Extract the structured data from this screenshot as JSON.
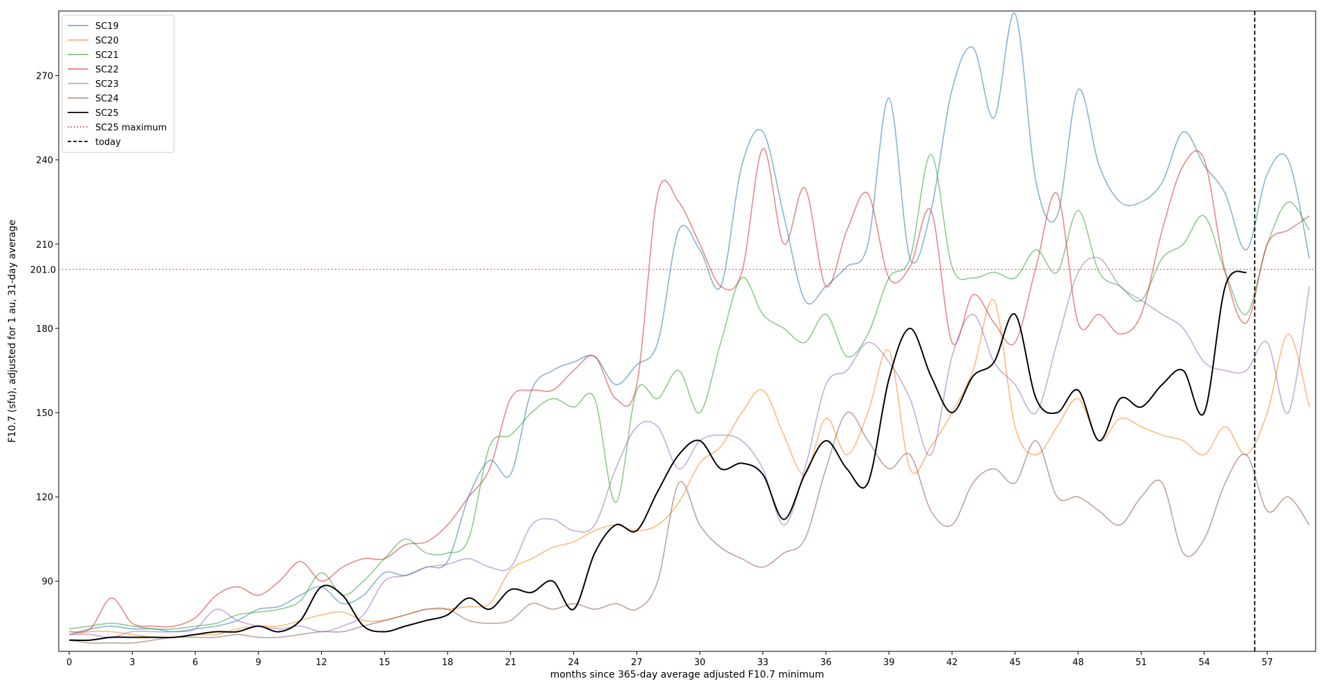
{
  "chart_data": {
    "type": "line",
    "xlabel": "months since 365-day average adjusted F10.7 minimum",
    "ylabel": "F10.7 (sfu), adjusted for 1 au, 31-day average",
    "xlim": [
      -0.5,
      59.3
    ],
    "ylim": [
      65,
      293
    ],
    "xticks": [
      0,
      3,
      6,
      9,
      12,
      15,
      18,
      21,
      24,
      27,
      30,
      33,
      36,
      39,
      42,
      45,
      48,
      51,
      54,
      57
    ],
    "yticks": [
      90,
      120,
      150,
      180,
      210,
      240,
      270
    ],
    "grid": false,
    "legend_position": "top-left",
    "series": [
      {
        "name": "SC19",
        "color": "#1f77b4",
        "x": [
          0,
          1,
          2,
          3,
          4,
          5,
          6,
          7,
          8,
          9,
          10,
          11,
          12,
          13,
          14,
          15,
          16,
          17,
          18,
          19,
          20,
          21,
          22,
          23,
          24,
          25,
          26,
          27,
          28,
          29,
          30,
          31,
          32,
          33,
          34,
          35,
          36,
          37,
          38,
          39,
          40,
          41,
          42,
          43,
          44,
          45,
          46,
          47,
          48,
          49,
          50,
          51,
          52,
          53,
          54,
          55,
          56,
          57,
          58,
          59
        ],
        "y": [
          71,
          73,
          74,
          73,
          73,
          72,
          73,
          74,
          76,
          80,
          81,
          85,
          88,
          82,
          85,
          93,
          92,
          95,
          97,
          120,
          133,
          128,
          158,
          165,
          168,
          170,
          160,
          167,
          175,
          215,
          208,
          195,
          238,
          250,
          220,
          190,
          195,
          202,
          210,
          262,
          205,
          222,
          265,
          280,
          255,
          292,
          232,
          220,
          265,
          238,
          225,
          225,
          232,
          250,
          238,
          228,
          208,
          235,
          240,
          205
        ]
      },
      {
        "name": "SC20",
        "color": "#ff7f0e",
        "x": [
          0,
          1,
          2,
          3,
          4,
          5,
          6,
          7,
          8,
          9,
          10,
          11,
          12,
          13,
          14,
          15,
          16,
          17,
          18,
          19,
          20,
          21,
          22,
          23,
          24,
          25,
          26,
          27,
          28,
          29,
          30,
          31,
          32,
          33,
          34,
          35,
          36,
          37,
          38,
          39,
          40,
          41,
          42,
          43,
          44,
          45,
          46,
          47,
          48,
          49,
          50,
          51,
          52,
          53,
          54,
          55,
          56,
          57,
          58,
          59
        ],
        "y": [
          71,
          72,
          72,
          71,
          70,
          70,
          71,
          71,
          73,
          74,
          74,
          76,
          78,
          79,
          76,
          76,
          78,
          80,
          80,
          81,
          82,
          94,
          98,
          102,
          104,
          108,
          110,
          108,
          110,
          118,
          132,
          138,
          150,
          158,
          142,
          128,
          148,
          135,
          150,
          172,
          130,
          138,
          150,
          165,
          190,
          145,
          135,
          145,
          155,
          140,
          148,
          145,
          142,
          140,
          135,
          145,
          135,
          150,
          178,
          152
        ]
      },
      {
        "name": "SC21",
        "color": "#2ca02c",
        "x": [
          0,
          1,
          2,
          3,
          4,
          5,
          6,
          7,
          8,
          9,
          10,
          11,
          12,
          13,
          14,
          15,
          16,
          17,
          18,
          19,
          20,
          21,
          22,
          23,
          24,
          25,
          26,
          27,
          28,
          29,
          30,
          31,
          32,
          33,
          34,
          35,
          36,
          37,
          38,
          39,
          40,
          41,
          42,
          43,
          44,
          45,
          46,
          47,
          48,
          49,
          50,
          51,
          52,
          53,
          54,
          55,
          56,
          57,
          58,
          59
        ],
        "y": [
          73,
          74,
          75,
          74,
          73,
          73,
          74,
          75,
          78,
          79,
          80,
          83,
          93,
          85,
          90,
          98,
          105,
          100,
          100,
          105,
          138,
          142,
          150,
          155,
          152,
          155,
          118,
          158,
          155,
          165,
          150,
          175,
          198,
          185,
          180,
          175,
          185,
          170,
          178,
          198,
          205,
          242,
          202,
          198,
          200,
          198,
          208,
          200,
          222,
          200,
          195,
          190,
          205,
          210,
          220,
          200,
          185,
          210,
          225,
          215
        ]
      },
      {
        "name": "SC22",
        "color": "#d62728",
        "x": [
          0,
          1,
          2,
          3,
          4,
          5,
          6,
          7,
          8,
          9,
          10,
          11,
          12,
          13,
          14,
          15,
          16,
          17,
          18,
          19,
          20,
          21,
          22,
          23,
          24,
          25,
          26,
          27,
          28,
          29,
          30,
          31,
          32,
          33,
          34,
          35,
          36,
          37,
          38,
          39,
          40,
          41,
          42,
          43,
          44,
          45,
          46,
          47,
          48,
          49,
          50,
          51,
          52,
          53,
          54,
          55,
          56,
          57,
          58,
          59
        ],
        "y": [
          72,
          73,
          84,
          75,
          74,
          74,
          77,
          85,
          88,
          85,
          90,
          97,
          90,
          95,
          98,
          98,
          103,
          104,
          110,
          120,
          130,
          155,
          158,
          158,
          165,
          170,
          155,
          160,
          228,
          225,
          210,
          195,
          200,
          244,
          210,
          230,
          195,
          215,
          228,
          198,
          202,
          222,
          175,
          192,
          182,
          175,
          202,
          228,
          182,
          185,
          178,
          185,
          215,
          238,
          240,
          200,
          182,
          210,
          215,
          220
        ]
      },
      {
        "name": "SC23",
        "color": "#9467bd",
        "x": [
          0,
          1,
          2,
          3,
          4,
          5,
          6,
          7,
          8,
          9,
          10,
          11,
          12,
          13,
          14,
          15,
          16,
          17,
          18,
          19,
          20,
          21,
          22,
          23,
          24,
          25,
          26,
          27,
          28,
          29,
          30,
          31,
          32,
          33,
          34,
          35,
          36,
          37,
          38,
          39,
          40,
          41,
          42,
          43,
          44,
          45,
          46,
          47,
          48,
          49,
          50,
          51,
          52,
          53,
          54,
          55,
          56,
          57,
          58,
          59
        ],
        "y": [
          71,
          71,
          70,
          72,
          72,
          72,
          73,
          80,
          76,
          74,
          73,
          74,
          72,
          74,
          78,
          90,
          92,
          95,
          96,
          98,
          95,
          95,
          110,
          112,
          108,
          110,
          130,
          145,
          145,
          130,
          140,
          142,
          140,
          130,
          110,
          130,
          160,
          165,
          175,
          168,
          155,
          135,
          170,
          185,
          168,
          160,
          150,
          175,
          200,
          205,
          195,
          190,
          185,
          180,
          168,
          165,
          165,
          175,
          150,
          195
        ]
      },
      {
        "name": "SC24",
        "color": "#8c564b",
        "x": [
          0,
          1,
          2,
          3,
          4,
          5,
          6,
          7,
          8,
          9,
          10,
          11,
          12,
          13,
          14,
          15,
          16,
          17,
          18,
          19,
          20,
          21,
          22,
          23,
          24,
          25,
          26,
          27,
          28,
          29,
          30,
          31,
          32,
          33,
          34,
          35,
          36,
          37,
          38,
          39,
          40,
          41,
          42,
          43,
          44,
          45,
          46,
          47,
          48,
          49,
          50,
          51,
          52,
          53,
          54,
          55,
          56,
          57,
          58,
          59
        ],
        "y": [
          69,
          68,
          68,
          68,
          69,
          70,
          70,
          70,
          71,
          70,
          70,
          71,
          72,
          72,
          74,
          76,
          78,
          80,
          80,
          76,
          75,
          76,
          82,
          80,
          82,
          80,
          82,
          80,
          90,
          125,
          110,
          102,
          98,
          95,
          100,
          105,
          130,
          150,
          140,
          130,
          135,
          115,
          110,
          125,
          130,
          125,
          140,
          120,
          120,
          115,
          110,
          120,
          125,
          100,
          105,
          125,
          135,
          115,
          120,
          110
        ]
      },
      {
        "name": "SC25",
        "color": "#000000",
        "x": [
          0,
          1,
          2,
          3,
          4,
          5,
          6,
          7,
          8,
          9,
          10,
          11,
          12,
          13,
          14,
          15,
          16,
          17,
          18,
          19,
          20,
          21,
          22,
          23,
          24,
          25,
          26,
          27,
          28,
          29,
          30,
          31,
          32,
          33,
          34,
          35,
          36,
          37,
          38,
          39,
          40,
          41,
          42,
          43,
          44,
          45,
          46,
          47,
          48,
          49,
          50,
          51,
          52,
          53,
          54,
          55,
          56
        ],
        "y": [
          69,
          69,
          70,
          70,
          70,
          70,
          71,
          72,
          72,
          74,
          72,
          76,
          88,
          85,
          74,
          72,
          74,
          76,
          78,
          84,
          80,
          87,
          86,
          90,
          80,
          100,
          110,
          108,
          122,
          135,
          140,
          130,
          132,
          128,
          112,
          128,
          140,
          130,
          125,
          162,
          180,
          163,
          150,
          163,
          168,
          185,
          155,
          150,
          158,
          140,
          155,
          152,
          160,
          165,
          150,
          195,
          200
        ]
      },
      {
        "name": "SC25 maximum",
        "color": "#ff0000",
        "style": "dotted",
        "y_const": 201.0
      },
      {
        "name": "today",
        "color": "#000000",
        "style": "dashed",
        "x_const": 56.4
      }
    ],
    "annotations": [
      {
        "text": "201.0",
        "color": "#ff0000",
        "y": 201.0
      }
    ]
  }
}
